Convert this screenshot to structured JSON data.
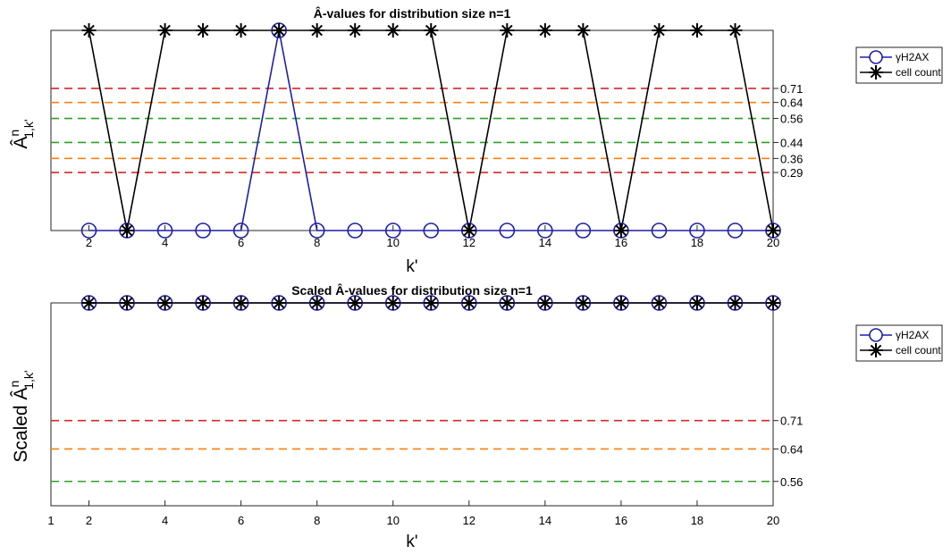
{
  "chart_data": [
    {
      "type": "line",
      "title": "Â-values for distribution size n=1",
      "xlabel": "k'",
      "ylabel": "Â",
      "ylabel_sup": "n",
      "ylabel_sub": "1,k'",
      "xlim": [
        1,
        20
      ],
      "ylim": [
        0,
        1
      ],
      "x_ticks": [
        2,
        4,
        6,
        8,
        10,
        12,
        14,
        16,
        18,
        20
      ],
      "x_tick_labels": [
        "2",
        "4",
        "6",
        "8",
        "10",
        "12",
        "14",
        "16",
        "18",
        "20"
      ],
      "threshold_lines": [
        {
          "value": 0.71,
          "label": "0.71",
          "color": "#d62728"
        },
        {
          "value": 0.64,
          "label": "0.64",
          "color": "#ff7f0e"
        },
        {
          "value": 0.56,
          "label": "0.56",
          "color": "#2ca02c"
        },
        {
          "value": 0.44,
          "label": "0.44",
          "color": "#2ca02c"
        },
        {
          "value": 0.36,
          "label": "0.36",
          "color": "#ff7f0e"
        },
        {
          "value": 0.29,
          "label": "0.29",
          "color": "#d62728"
        }
      ],
      "x": [
        2,
        3,
        4,
        5,
        6,
        7,
        8,
        9,
        10,
        11,
        12,
        13,
        14,
        15,
        16,
        17,
        18,
        19,
        20
      ],
      "series": [
        {
          "name": "γH2AX",
          "marker": "circle",
          "color": "#1f1fa8",
          "values": [
            0,
            0,
            0,
            0,
            0,
            1,
            0,
            0,
            0,
            0,
            0,
            0,
            0,
            0,
            0,
            0,
            0,
            0,
            0
          ]
        },
        {
          "name": "cell count",
          "marker": "asterisk",
          "color": "#000000",
          "values": [
            1,
            0,
            1,
            1,
            1,
            1,
            1,
            1,
            1,
            1,
            0,
            1,
            1,
            1,
            0,
            1,
            1,
            1,
            0
          ]
        }
      ],
      "legend_position": "outside-right-top",
      "grid": false
    },
    {
      "type": "line",
      "title": "Scaled Â-values for distribution size n=1",
      "xlabel": "k'",
      "ylabel": "Scaled Â",
      "ylabel_sup": "n",
      "ylabel_sub": "1,k'",
      "xlim": [
        1,
        20
      ],
      "ylim": [
        0.5,
        1
      ],
      "x_ticks": [
        1,
        2,
        4,
        6,
        8,
        10,
        12,
        14,
        16,
        18,
        20
      ],
      "x_tick_labels": [
        "1",
        "2",
        "4",
        "6",
        "8",
        "10",
        "12",
        "14",
        "16",
        "18",
        "20"
      ],
      "threshold_lines": [
        {
          "value": 0.71,
          "label": "0.71",
          "color": "#d62728"
        },
        {
          "value": 0.64,
          "label": "0.64",
          "color": "#ff7f0e"
        },
        {
          "value": 0.56,
          "label": "0.56",
          "color": "#2ca02c"
        }
      ],
      "x": [
        2,
        3,
        4,
        5,
        6,
        7,
        8,
        9,
        10,
        11,
        12,
        13,
        14,
        15,
        16,
        17,
        18,
        19,
        20
      ],
      "series": [
        {
          "name": "γH2AX",
          "marker": "circle",
          "color": "#1f1fa8",
          "values": [
            1,
            1,
            1,
            1,
            1,
            1,
            1,
            1,
            1,
            1,
            1,
            1,
            1,
            1,
            1,
            1,
            1,
            1,
            1
          ]
        },
        {
          "name": "cell count",
          "marker": "asterisk",
          "color": "#000000",
          "values": [
            1,
            1,
            1,
            1,
            1,
            1,
            1,
            1,
            1,
            1,
            1,
            1,
            1,
            1,
            1,
            1,
            1,
            1,
            1
          ]
        }
      ],
      "legend_position": "outside-right-top",
      "grid": false
    }
  ]
}
